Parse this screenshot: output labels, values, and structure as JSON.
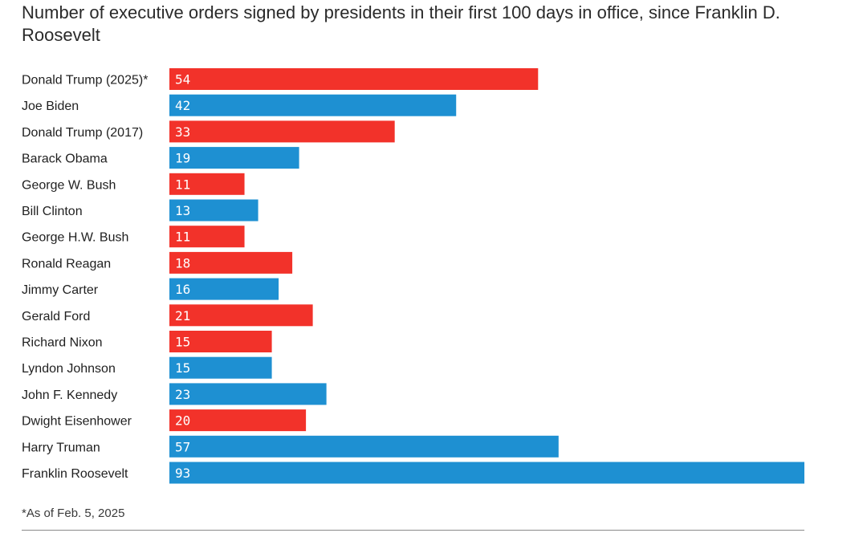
{
  "chart_data": {
    "type": "bar",
    "orientation": "horizontal",
    "title": "Number of executive orders signed by presidents in their first 100 days in office, since Franklin D. Roosevelt",
    "categories": [
      "Donald Trump (2025)*",
      "Joe Biden",
      "Donald Trump (2017)",
      "Barack Obama",
      "George W. Bush",
      "Bill Clinton",
      "George H.W. Bush",
      "Ronald Reagan",
      "Jimmy Carter",
      "Gerald Ford",
      "Richard Nixon",
      "Lyndon Johnson",
      "John F. Kennedy",
      "Dwight Eisenhower",
      "Harry Truman",
      "Franklin Roosevelt"
    ],
    "values": [
      54,
      42,
      33,
      19,
      11,
      13,
      11,
      18,
      16,
      21,
      15,
      15,
      23,
      20,
      57,
      93
    ],
    "party": [
      "R",
      "D",
      "R",
      "D",
      "R",
      "D",
      "R",
      "R",
      "D",
      "R",
      "R",
      "D",
      "D",
      "R",
      "D",
      "D"
    ],
    "colors": {
      "R": "#f2322a",
      "D": "#1e90d2"
    },
    "xlim": [
      0,
      93
    ],
    "xlabel": "",
    "ylabel": "",
    "grid": false,
    "footnote": "*As of Feb. 5, 2025"
  }
}
